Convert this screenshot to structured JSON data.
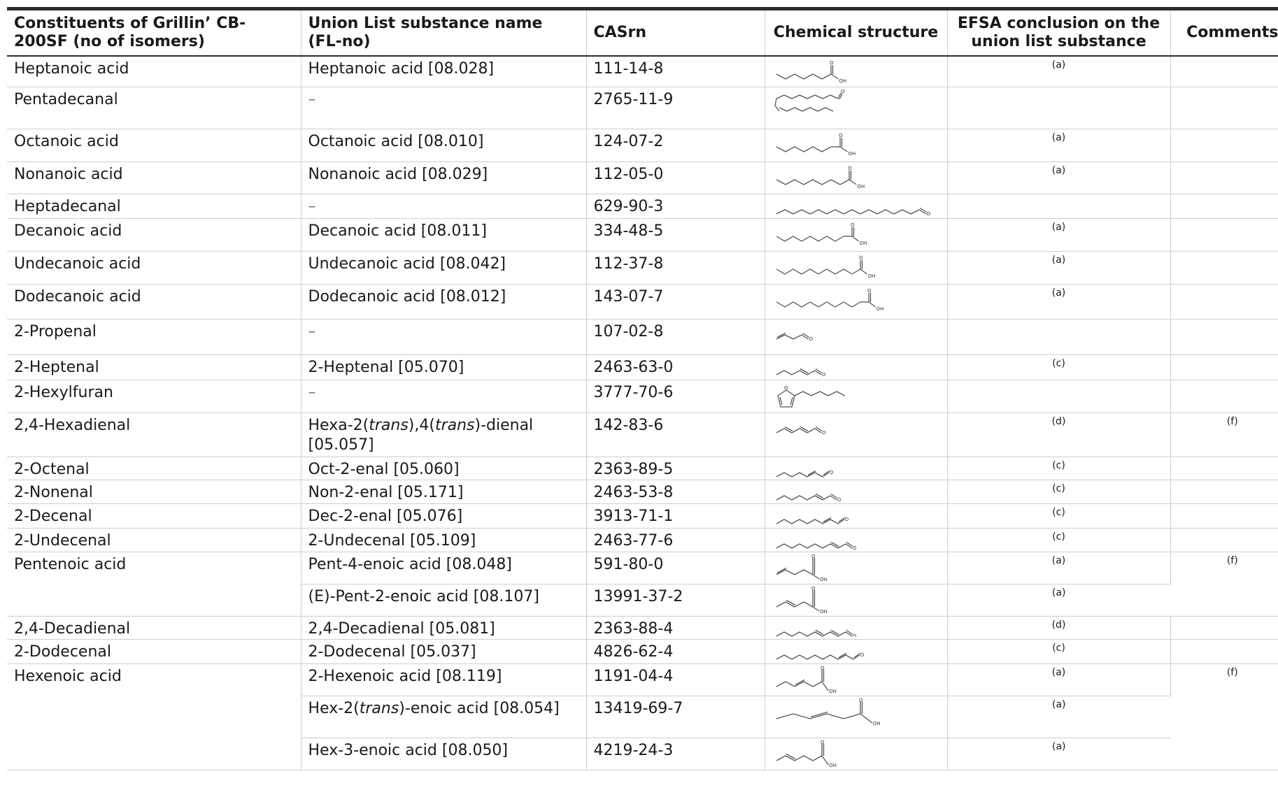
{
  "headers": {
    "col1": "Constituents of Grillin’ CB-200SF (no of isomers)",
    "col2": "Union List substance name (FL-no)",
    "col3": "CASrn",
    "col4": "Chemical structure",
    "col5": "EFSA conclusion on the union list substance",
    "col6": "Comments"
  },
  "rows": [
    {
      "constituent": "Heptanoic acid",
      "union": "Heptanoic acid [08.028]",
      "cas": "111-14-8",
      "efsa": "(a)",
      "comments": "",
      "struct": "acid7"
    },
    {
      "constituent": "Pentadecanal",
      "union": "–",
      "cas": "2765-11-9",
      "efsa": "",
      "comments": "",
      "struct": "pentadecanal"
    },
    {
      "constituent": "Octanoic acid",
      "union": "Octanoic acid [08.010]",
      "cas": "124-07-2",
      "efsa": "(a)",
      "comments": "",
      "struct": "acid8"
    },
    {
      "constituent": "Nonanoic acid",
      "union": "Nonanoic acid [08.029]",
      "cas": "112-05-0",
      "efsa": "(a)",
      "comments": "",
      "struct": "acid9"
    },
    {
      "constituent": "Heptadecanal",
      "union": "–",
      "cas": "629-90-3",
      "efsa": "",
      "comments": "",
      "struct": "heptadecanal"
    },
    {
      "constituent": "Decanoic acid",
      "union": "Decanoic acid [08.011]",
      "cas": "334-48-5",
      "efsa": "(a)",
      "comments": "",
      "struct": "acid10"
    },
    {
      "constituent": "Undecanoic acid",
      "union": "Undecanoic acid [08.042]",
      "cas": "112-37-8",
      "efsa": "(a)",
      "comments": "",
      "struct": "acid11"
    },
    {
      "constituent": "Dodecanoic acid",
      "union": "Dodecanoic acid [08.012]",
      "cas": "143-07-7",
      "efsa": "(a)",
      "comments": "",
      "struct": "acid12"
    },
    {
      "constituent": "2-Propenal",
      "union": "–",
      "cas": "107-02-8",
      "efsa": "",
      "comments": "",
      "struct": "propenal"
    },
    {
      "constituent": "2-Heptenal",
      "union": "2-Heptenal [05.070]",
      "cas": "2463-63-0",
      "efsa": "(c)",
      "comments": "",
      "struct": "enal7"
    },
    {
      "constituent": "2-Hexylfuran",
      "union": "–",
      "cas": "3777-70-6",
      "efsa": "",
      "comments": "",
      "struct": "furan"
    },
    {
      "constituent": "2,4-Hexadienal",
      "union_parts": [
        "Hexa-2(",
        "trans",
        "),4(",
        "trans",
        ")-dienal [05.057]"
      ],
      "cas": "142-83-6",
      "efsa": "(d)",
      "comments": "(f)",
      "struct": "dienal6"
    },
    {
      "constituent": "2-Octenal",
      "union": "Oct-2-enal [05.060]",
      "cas": "2363-89-5",
      "efsa": "(c)",
      "comments": "",
      "struct": "enal8"
    },
    {
      "constituent": "2-Nonenal",
      "union": "Non-2-enal [05.171]",
      "cas": "2463-53-8",
      "efsa": "(c)",
      "comments": "",
      "struct": "enal9"
    },
    {
      "constituent": "2-Decenal",
      "union": "Dec-2-enal [05.076]",
      "cas": "3913-71-1",
      "efsa": "(c)",
      "comments": "",
      "struct": "enal10"
    },
    {
      "constituent": "2-Undecenal",
      "union": "2-Undecenal [05.109]",
      "cas": "2463-77-6",
      "efsa": "(c)",
      "comments": "",
      "struct": "enal11"
    },
    {
      "constituent": "Pentenoic acid",
      "union": "Pent-4-enoic acid [08.048]",
      "cas": "591-80-0",
      "efsa": "(a)",
      "comments": "(f)",
      "struct": "pent4"
    },
    {
      "constituent": "",
      "union": "(E)-Pent-2-enoic acid [08.107]",
      "cas": "13991-37-2",
      "efsa": "(a)",
      "comments": "",
      "struct": "pent2"
    },
    {
      "constituent": "2,4-Decadienal",
      "union": "2,4-Decadienal [05.081]",
      "cas": "2363-88-4",
      "efsa": "(d)",
      "comments": "",
      "struct": "dienal10"
    },
    {
      "constituent": "2-Dodecenal",
      "union": "2-Dodecenal [05.037]",
      "cas": "4826-62-4",
      "efsa": "(c)",
      "comments": "",
      "struct": "enal12"
    },
    {
      "constituent": "Hexenoic acid",
      "union": "2-Hexenoic acid [08.119]",
      "cas": "1191-04-4",
      "efsa": "(a)",
      "comments": "(f)",
      "struct": "hex2"
    },
    {
      "constituent": "",
      "union_parts": [
        "Hex-2(",
        "trans",
        ")-enoic acid [08.054]"
      ],
      "cas": "13419-69-7",
      "efsa": "(a)",
      "comments": "",
      "struct": "hex2t"
    },
    {
      "constituent": "",
      "union": "Hex-3-enoic acid [08.050]",
      "cas": "4219-24-3",
      "efsa": "(a)",
      "comments": "",
      "struct": "hex3"
    }
  ],
  "structure_labels": {
    "oh": "OH",
    "o": "O"
  }
}
